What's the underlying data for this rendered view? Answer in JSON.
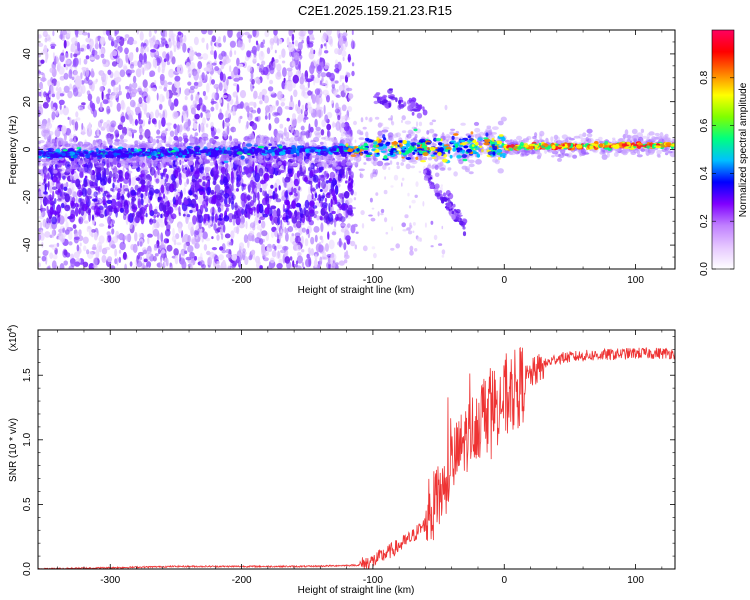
{
  "title": "C2E1.2025.159.21.23.R15",
  "chart_data": [
    {
      "type": "heatmap",
      "xlabel": "Height of straight line (km)",
      "ylabel": "Frequency (Hz)",
      "xlim": [
        -355,
        130
      ],
      "ylim": [
        -50,
        50
      ],
      "x_ticks": [
        -300,
        -200,
        -100,
        0,
        100
      ],
      "y_ticks": [
        -40,
        -20,
        0,
        20,
        40
      ],
      "colorbar": {
        "label": "Normalized spectral amplitude",
        "range": [
          0,
          1
        ],
        "ticks": [
          "0.0",
          "0.2",
          "0.4",
          "0.6",
          "0.8"
        ],
        "tick_values": [
          0,
          0.2,
          0.4,
          0.6,
          0.8
        ],
        "colors": [
          "#ffffff",
          "#e6c8ff",
          "#c080ff",
          "#8000ff",
          "#0000ff",
          "#00c0ff",
          "#00ff80",
          "#80ff00",
          "#ffff00",
          "#ff8000",
          "#ff0000",
          "#ff0060"
        ]
      },
      "features": [
        {
          "name": "scatter_region",
          "x_range": [
            -355,
            -115
          ],
          "freq_range": [
            -50,
            50
          ],
          "color": "#8a4dff"
        },
        {
          "name": "main_band",
          "x_range": [
            -355,
            130
          ],
          "center_freq_start": -2,
          "center_freq_end": 2
        },
        {
          "name": "upper_branch",
          "x_start": -98,
          "x_end": -60,
          "freq_start": 22,
          "freq_end": 16
        },
        {
          "name": "lower_branch",
          "x_start": -60,
          "x_end": -30,
          "freq_start": -10,
          "freq_end": -32
        }
      ]
    },
    {
      "type": "line",
      "xlabel": "Height of straight line (km)",
      "ylabel": "SNR (10 * v/v)",
      "y_multiplier_label": "(x10",
      "y_multiplier_exp": "4",
      "y_multiplier_close": ")",
      "xlim": [
        -355,
        130
      ],
      "ylim": [
        0,
        1.85
      ],
      "x_ticks": [
        -300,
        -200,
        -100,
        0,
        100
      ],
      "y_ticks": [
        0,
        0.5,
        1,
        1.5
      ],
      "y_tick_labels": [
        "0.0",
        "0.5",
        "1.0",
        "1.5"
      ],
      "color": "#ee3333",
      "series": [
        {
          "x": [
            -355,
            -300,
            -250,
            -200,
            -150,
            -110,
            -100,
            -90,
            -80,
            -70,
            -60,
            -50,
            -40,
            -30,
            -20,
            -10,
            0,
            10,
            20,
            30,
            40,
            60,
            80,
            100,
            130
          ],
          "y": [
            0.0,
            0.01,
            0.02,
            0.02,
            0.02,
            0.03,
            0.06,
            0.12,
            0.18,
            0.25,
            0.35,
            0.55,
            0.8,
            1.0,
            1.15,
            1.25,
            1.3,
            1.4,
            1.5,
            1.58,
            1.63,
            1.65,
            1.66,
            1.67,
            1.67
          ]
        }
      ]
    }
  ]
}
